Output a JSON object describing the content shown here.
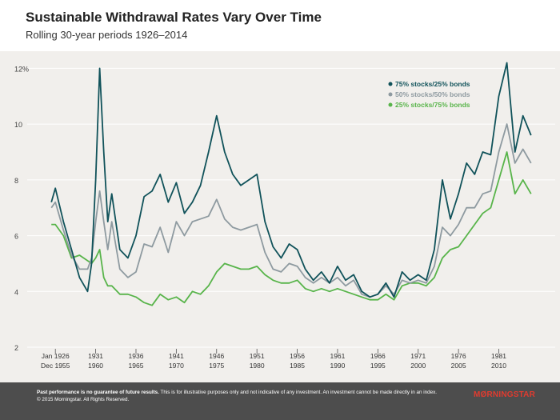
{
  "title": "Sustainable Withdrawal Rates Vary Over Time",
  "subtitle": "Rolling 30-year periods 1926–2014",
  "footer": {
    "bold": "Past performance is no guarantee of future results.",
    "text": " This is for illustrative purposes only and not indicative of any investment. An investment cannot be made directly in an index.",
    "copyright": "© 2015 Morningstar. All Rights Reserved.",
    "brand": "MØRNINGSTAR"
  },
  "chart_data": {
    "type": "line",
    "ylim": [
      2,
      12.5
    ],
    "yticks": [
      {
        "v": 12,
        "label": "12%"
      },
      {
        "v": 10,
        "label": "10"
      },
      {
        "v": 8,
        "label": "8"
      },
      {
        "v": 6,
        "label": "6"
      },
      {
        "v": 4,
        "label": "4"
      },
      {
        "v": 2,
        "label": "2"
      }
    ],
    "xlim": [
      1923.5,
      1987.2
    ],
    "xticks": [
      {
        "x": 1926,
        "top": "Jan 1926",
        "bottom": "Dec 1955"
      },
      {
        "x": 1931,
        "top": "1931",
        "bottom": "1960"
      },
      {
        "x": 1936,
        "top": "1936",
        "bottom": "1965"
      },
      {
        "x": 1941,
        "top": "1941",
        "bottom": "1970"
      },
      {
        "x": 1946,
        "top": "1946",
        "bottom": "1975"
      },
      {
        "x": 1951,
        "top": "1951",
        "bottom": "1980"
      },
      {
        "x": 1956,
        "top": "1956",
        "bottom": "1985"
      },
      {
        "x": 1961,
        "top": "1961",
        "bottom": "1990"
      },
      {
        "x": 1966,
        "top": "1966",
        "bottom": "1995"
      },
      {
        "x": 1971,
        "top": "1971",
        "bottom": "2000"
      },
      {
        "x": 1976,
        "top": "1976",
        "bottom": "2005"
      },
      {
        "x": 1981,
        "top": "1981",
        "bottom": "2010"
      }
    ],
    "legend_position": "top-right",
    "x": [
      1925.5,
      1926,
      1927,
      1928,
      1929,
      1930,
      1930.5,
      1931,
      1931.5,
      1932,
      1932.5,
      1933,
      1934,
      1935,
      1936,
      1937,
      1938,
      1939,
      1940,
      1941,
      1942,
      1943,
      1944,
      1945,
      1946,
      1947,
      1948,
      1949,
      1950,
      1951,
      1952,
      1953,
      1954,
      1955,
      1956,
      1957,
      1958,
      1959,
      1960,
      1961,
      1962,
      1963,
      1964,
      1965,
      1966,
      1967,
      1968,
      1969,
      1970,
      1971,
      1972,
      1973,
      1974,
      1975,
      1976,
      1977,
      1978,
      1979,
      1980,
      1981,
      1982,
      1983,
      1984,
      1985
    ],
    "series": [
      {
        "name": "75% stocks/25% bonds",
        "color": "#10525a",
        "values": [
          7.2,
          7.7,
          6.5,
          5.5,
          4.5,
          4.0,
          5.0,
          8.0,
          12.0,
          9.0,
          6.5,
          7.5,
          5.5,
          5.2,
          6.0,
          7.4,
          7.6,
          8.2,
          7.2,
          7.9,
          6.8,
          7.2,
          7.8,
          9.0,
          10.3,
          9.0,
          8.2,
          7.8,
          8.0,
          8.2,
          6.5,
          5.6,
          5.2,
          5.7,
          5.5,
          4.8,
          4.4,
          4.7,
          4.3,
          4.9,
          4.4,
          4.6,
          4.0,
          3.8,
          3.9,
          4.3,
          3.8,
          4.7,
          4.4,
          4.6,
          4.4,
          5.5,
          8.0,
          6.6,
          7.5,
          8.6,
          8.2,
          9.0,
          8.9,
          11.0,
          12.2,
          9.0,
          10.3,
          9.6
        ]
      },
      {
        "name": "50% stocks/50% bonds",
        "color": "#8e9aa0",
        "values": [
          7.0,
          7.2,
          6.2,
          5.3,
          4.8,
          4.8,
          5.2,
          6.5,
          7.6,
          6.5,
          5.5,
          6.5,
          4.8,
          4.5,
          4.7,
          5.7,
          5.6,
          6.3,
          5.4,
          6.5,
          6.0,
          6.5,
          6.6,
          6.7,
          7.3,
          6.6,
          6.3,
          6.2,
          6.3,
          6.4,
          5.4,
          4.8,
          4.7,
          5.0,
          4.9,
          4.5,
          4.3,
          4.5,
          4.3,
          4.5,
          4.2,
          4.4,
          3.9,
          3.8,
          3.9,
          4.2,
          3.9,
          4.4,
          4.3,
          4.4,
          4.3,
          4.9,
          6.3,
          6.0,
          6.4,
          7.0,
          7.0,
          7.5,
          7.6,
          9.0,
          10.0,
          8.6,
          9.1,
          8.6
        ]
      },
      {
        "name": "25% stocks/75% bonds",
        "color": "#58b44a",
        "values": [
          6.4,
          6.4,
          6.0,
          5.2,
          5.3,
          5.1,
          5.0,
          5.2,
          5.5,
          4.5,
          4.2,
          4.2,
          3.9,
          3.9,
          3.8,
          3.6,
          3.5,
          3.9,
          3.7,
          3.8,
          3.6,
          4.0,
          3.9,
          4.2,
          4.7,
          5.0,
          4.9,
          4.8,
          4.8,
          4.9,
          4.6,
          4.4,
          4.3,
          4.3,
          4.4,
          4.1,
          4.0,
          4.1,
          4.0,
          4.1,
          4.0,
          3.9,
          3.8,
          3.7,
          3.7,
          3.9,
          3.7,
          4.2,
          4.3,
          4.3,
          4.2,
          4.5,
          5.2,
          5.5,
          5.6,
          6.0,
          6.4,
          6.8,
          7.0,
          8.0,
          9.0,
          7.5,
          8.0,
          7.5
        ]
      }
    ]
  }
}
